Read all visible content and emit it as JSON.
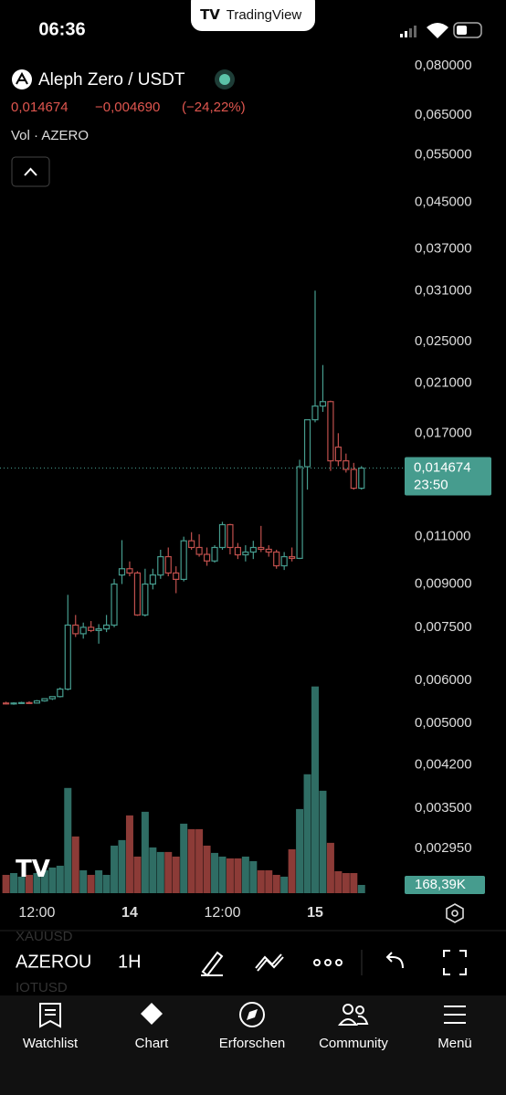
{
  "status": {
    "time": "06:36",
    "brand": "TradingView"
  },
  "chart_data": {
    "type": "candlestick",
    "title": "Aleph Zero / USDT",
    "last_price": {
      "value": 0.014674,
      "label": "0,014674"
    },
    "change_label": "−0,004690",
    "change_pct_label": "(−24,22%)",
    "volume_title": "Vol · AZERO",
    "countdown": "23:50",
    "log_scale": true,
    "up_color": "#469c8e",
    "down_color": "#c0504d",
    "volume_up_color": "#2f6d64",
    "volume_down_color": "#8c3b37",
    "ylim": [
      0.00238,
      0.0838
    ],
    "yticks": [
      {
        "value": 0.08,
        "label": "0,080000"
      },
      {
        "value": 0.065,
        "label": "0,065000"
      },
      {
        "value": 0.055,
        "label": "0,055000"
      },
      {
        "value": 0.045,
        "label": "0,045000"
      },
      {
        "value": 0.037,
        "label": "0,037000"
      },
      {
        "value": 0.031,
        "label": "0,031000"
      },
      {
        "value": 0.025,
        "label": "0,025000"
      },
      {
        "value": 0.021,
        "label": "0,021000"
      },
      {
        "value": 0.017,
        "label": "0,017000"
      },
      {
        "value": 0.011,
        "label": "0,011000"
      },
      {
        "value": 0.009,
        "label": "0,009000"
      },
      {
        "value": 0.0075,
        "label": "0,007500"
      },
      {
        "value": 0.006,
        "label": "0,006000"
      },
      {
        "value": 0.005,
        "label": "0,005000"
      },
      {
        "value": 0.0042,
        "label": "0,004200"
      },
      {
        "value": 0.0035,
        "label": "0,003500"
      },
      {
        "value": 0.00295,
        "label": "0,002950"
      }
    ],
    "categories": [
      null,
      null,
      null,
      null,
      "12:00",
      null,
      null,
      null,
      null,
      null,
      null,
      null,
      null,
      null,
      null,
      null,
      "14",
      null,
      null,
      null,
      null,
      null,
      null,
      null,
      null,
      null,
      null,
      null,
      "12:00",
      null,
      null,
      null,
      null,
      null,
      null,
      null,
      null,
      null,
      null,
      null,
      "15",
      null,
      null,
      null,
      null,
      null,
      null
    ],
    "open": [
      0.00545,
      0.00544,
      0.00545,
      0.00546,
      0.00545,
      0.0055,
      0.00555,
      0.0056,
      0.00578,
      0.00757,
      0.0073,
      0.0075,
      0.0074,
      0.00745,
      0.00757,
      0.00935,
      0.0096,
      0.00943,
      0.0079,
      0.009,
      0.00935,
      0.0101,
      0.00943,
      0.00918,
      0.0108,
      0.0105,
      0.0102,
      0.00992,
      0.0105,
      0.01156,
      0.0105,
      0.01018,
      0.0103,
      0.0105,
      0.01042,
      0.0103,
      0.00972,
      0.0101,
      0.01003,
      0.01476,
      0.01799,
      0.01906,
      0.01942,
      0.01603,
      0.01513,
      0.01459,
      0.01348
    ],
    "high": [
      0.00548,
      0.00547,
      0.00548,
      0.00549,
      0.00552,
      0.00556,
      0.0056,
      0.00582,
      0.0086,
      0.0079,
      0.00765,
      0.0077,
      0.0076,
      0.0079,
      0.0092,
      0.01083,
      0.0099,
      0.0095,
      0.0096,
      0.0096,
      0.0104,
      0.0105,
      0.0097,
      0.01099,
      0.0112,
      0.0111,
      0.0105,
      0.0106,
      0.0117,
      0.0116,
      0.0107,
      0.0106,
      0.0108,
      0.0115,
      0.0106,
      0.0104,
      0.0103,
      0.0105,
      0.0152,
      0.018,
      0.031,
      0.02266,
      0.0195,
      0.017,
      0.0156,
      0.015,
      0.0148
    ],
    "low": [
      0.00542,
      0.00541,
      0.00543,
      0.00543,
      0.00544,
      0.00548,
      0.00552,
      0.00558,
      0.00575,
      0.0072,
      0.00715,
      0.00735,
      0.007,
      0.00735,
      0.0075,
      0.009,
      0.0093,
      0.00787,
      0.00785,
      0.0088,
      0.0092,
      0.0093,
      0.00866,
      0.0091,
      0.0104,
      0.0101,
      0.00972,
      0.00985,
      0.0104,
      0.0102,
      0.01,
      0.0099,
      0.01,
      0.0103,
      0.0101,
      0.0096,
      0.00955,
      0.0099,
      0.01,
      0.0134,
      0.0178,
      0.0186,
      0.0145,
      0.0148,
      0.0144,
      0.0134,
      0.0134
    ],
    "close": [
      0.00544,
      0.00545,
      0.00546,
      0.00545,
      0.0055,
      0.00555,
      0.0056,
      0.00578,
      0.00757,
      0.0073,
      0.0075,
      0.0074,
      0.00745,
      0.00757,
      0.009,
      0.0096,
      0.00943,
      0.0079,
      0.009,
      0.00935,
      0.0101,
      0.00943,
      0.00918,
      0.0108,
      0.0105,
      0.0102,
      0.00992,
      0.0105,
      0.01156,
      0.0105,
      0.01018,
      0.0103,
      0.0105,
      0.01042,
      0.0103,
      0.00972,
      0.0101,
      0.01003,
      0.01476,
      0.01799,
      0.01906,
      0.01942,
      0.01513,
      0.01513,
      0.01459,
      0.01348,
      0.014674
    ],
    "volume": [
      374000,
      411000,
      337000,
      374000,
      411000,
      468000,
      524000,
      561000,
      2151000,
      1159000,
      468000,
      374000,
      468000,
      374000,
      972000,
      1085000,
      1590000,
      748000,
      1664000,
      935000,
      842000,
      842000,
      748000,
      1421000,
      1309000,
      1309000,
      972000,
      823000,
      748000,
      711000,
      711000,
      748000,
      655000,
      468000,
      468000,
      374000,
      337000,
      898000,
      1720000,
      2431000,
      4226000,
      2094000,
      1029000,
      449000,
      411000,
      411000,
      168390
    ],
    "volume_ylim": [
      0,
      4500000
    ],
    "volume_last": {
      "value": 168390,
      "label": "168,39K"
    }
  },
  "toolbar": {
    "symbol": "AZEROU",
    "interval": "1H",
    "ghost_above": "XAUUSD",
    "ghost_below": "IOTUSD"
  },
  "nav": [
    "Watchlist",
    "Chart",
    "Erforschen",
    "Community",
    "Menü"
  ]
}
